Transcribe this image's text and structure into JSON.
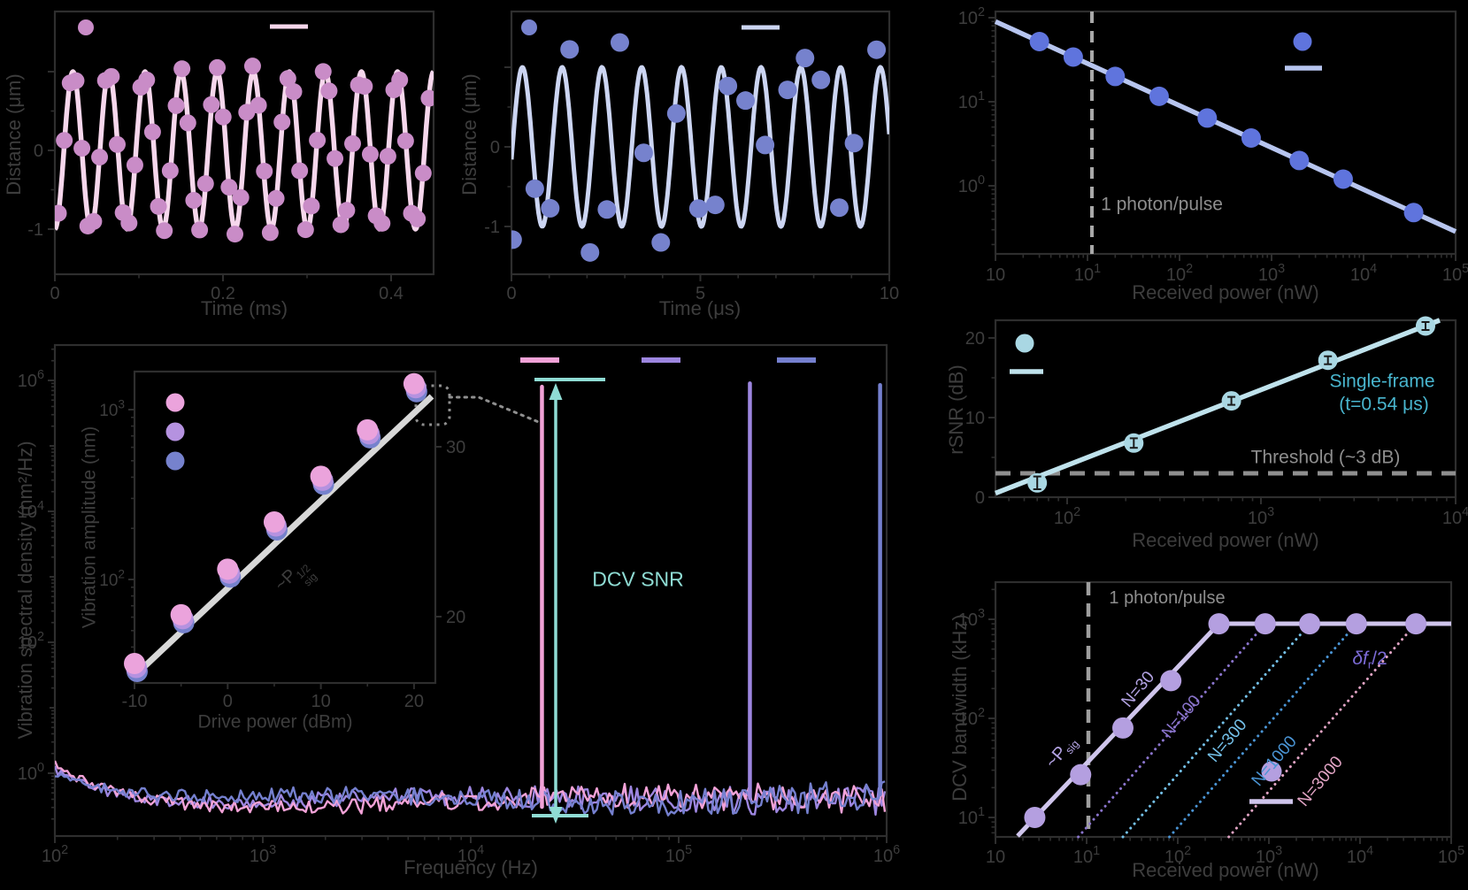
{
  "palette": {
    "background": "#000000",
    "axis": "#2e2e2e",
    "tick_text": "#3d3d3d",
    "pink_dot": "#c98cc7",
    "pink_line": "#f6d7ec",
    "periwinkle_dot": "#7682cd",
    "periwinkle_line": "#ccd5f2",
    "blue_dot": "#5f74dd",
    "blue_line": "#b7c5ef",
    "teal_dot": "#a9d7e3",
    "teal_line": "#bfe2ec",
    "teal_text": "#49b6cf",
    "gray_annotation": "#8e8e8e",
    "gray_dash": "#9e9e9e",
    "spec_pink": "#f2a2d7",
    "spec_violet": "#9d86e0",
    "spec_blue": "#7580cf",
    "dcv_teal": "#8fdcd4",
    "inset_line": "#d8d8d8",
    "inset_pink": "#eba3dc",
    "inset_lavender": "#b592e0",
    "lav_line": "#cfc5ec",
    "lav_dot": "#b49fe0",
    "n30": "#b3a3e3",
    "n100": "#8a74cc",
    "n300": "#74c0e8",
    "n1000": "#4a94d4",
    "n3000": "#e0a3c3",
    "delta_purple": "#7c6bd6"
  },
  "chart_data": {
    "panel_a": {
      "type": "line+scatter",
      "xlabel": "Time (ms)",
      "ylabel": "Distance (μm)",
      "x_tick_labels": [
        "0",
        "0.2",
        "0.4"
      ],
      "y_tick_labels": [
        "0",
        "-1"
      ],
      "xlim_ms": [
        0,
        0.45
      ],
      "ylim_um": [
        -1.6,
        1.75
      ],
      "sine": {
        "amplitude_um": 1,
        "cycles": 10.5,
        "seed": 11
      },
      "scatter": {
        "n_points": 64,
        "jitter_um": 0.13
      }
    },
    "panel_b": {
      "type": "line+scatter",
      "xlabel": "Time (μs)",
      "ylabel": "Distance (μm)",
      "x_tick_labels": [
        "0",
        "5",
        "10"
      ],
      "y_tick_labels": [
        "0",
        "-1"
      ],
      "xlim_us": [
        0,
        10
      ],
      "sine": {
        "amplitude_um": 1,
        "cycles": 9.5,
        "seed": 23
      },
      "scatter": {
        "n_points": 21,
        "spread_um": 1.35
      }
    },
    "panel_c": {
      "type": "scatter+line",
      "xlabel": "Received power (nW)",
      "x_tick_labels": [
        "10",
        "10^1",
        "10^2",
        "10^3",
        "10^4",
        "10^5"
      ],
      "y_tick_labels": [
        "10^0",
        "10^1",
        "10^2"
      ],
      "x_nW": [
        3,
        7,
        20,
        60,
        200,
        600,
        2000,
        6000,
        35000
      ],
      "y": [
        52,
        34,
        20,
        11.6,
        6.4,
        3.7,
        2.0,
        1.2,
        0.48
      ],
      "fit_endpoints": {
        "x": [
          1,
          100000
        ],
        "y": [
          90,
          0.285
        ]
      },
      "vline_label": "1 photon/pulse"
    },
    "panel_d": {
      "type": "scatter+line",
      "xlabel": "Received power (nW)",
      "ylabel": "rSNR (dB)",
      "x_tick_labels": [
        "10^2",
        "10^3",
        "10^4"
      ],
      "y_tick_labels": [
        "0",
        "10",
        "20"
      ],
      "x_nW": [
        70,
        220,
        700,
        2200,
        7000
      ],
      "y_dB": [
        1.8,
        6.8,
        12.1,
        17.2,
        21.5
      ],
      "yerr_dB": [
        0.8,
        0.6,
        0.5,
        0.5,
        0.5
      ],
      "threshold_dB": 3,
      "annotation_line1": "Single-frame",
      "annotation_line2": "(t=0.54 μs)",
      "threshold_label": "Threshold (~3 dB)"
    },
    "panel_e": {
      "type": "line+scatter",
      "xlabel": "Received power (nW)",
      "ylabel": "DCV bandwidth (kHz)",
      "x_tick_labels": [
        "10",
        "10^1",
        "10^2",
        "10^3",
        "10^4",
        "10^5"
      ],
      "y_tick_labels": [
        "10^1",
        "10^2",
        "10^3"
      ],
      "solid_x_nW": [
        2.7,
        8.6,
        25,
        84,
        283,
        910,
        2800,
        9100,
        41000
      ],
      "solid_y_kHz": [
        10,
        27,
        80,
        240,
        900,
        900,
        900,
        900,
        900
      ],
      "saturation_kHz": 900,
      "n_labels": [
        "N=30",
        "N=100",
        "N=300",
        "N=1000",
        "N=3000"
      ],
      "n_curves": [
        {
          "label": "N=100",
          "x_bottom_nW": 8.1,
          "x_join_nW": 915
        },
        {
          "label": "N=300",
          "x_bottom_nW": 25,
          "x_join_nW": 2820
        },
        {
          "label": "N=1000",
          "x_bottom_nW": 81,
          "x_join_nW": 9150
        },
        {
          "label": "N=3000",
          "x_bottom_nW": 363,
          "x_join_nW": 41000
        }
      ],
      "photon_label": "1 photon/pulse",
      "psig": {
        "base": "~P",
        "sub": "sig"
      },
      "delta": {
        "p1": "δf",
        "sub": "r",
        "p2": "/2"
      }
    },
    "panel_f": {
      "type": "spectrum",
      "xlabel": "Frequency (Hz)",
      "ylabel": "Vibration spectral density  (nm²/Hz)",
      "x_tick_labels": [
        "10^2",
        "10^3",
        "10^4",
        "10^5",
        "10^6"
      ],
      "y_tick_labels": [
        "10^6",
        "10^4",
        "10^2",
        "10^0"
      ],
      "peaks": [
        {
          "series": "pink",
          "freq_Hz": 22000,
          "psd": 800000
        },
        {
          "series": "violet",
          "freq_Hz": 220000,
          "psd": 900000
        },
        {
          "series": "blue",
          "freq_Hz": 930000,
          "psd": 850000
        }
      ],
      "noise_floor_range": [
        0.2,
        1.5
      ],
      "dcv_snr_label": "DCV SNR",
      "inset": {
        "xlabel": "Drive power (dBm)",
        "ylabel": "Vibration amplitude (nm)",
        "x_tick_labels": [
          "-10",
          "0",
          "10",
          "20"
        ],
        "y_tick_labels": [
          "10^3",
          "10^2"
        ],
        "right_tick_labels": [
          "30",
          "20"
        ],
        "drive_dBm": [
          -10,
          -5,
          0,
          5,
          10,
          15,
          20
        ],
        "amplitude_nm": [
          32,
          62,
          115,
          218,
          405,
          760,
          1420
        ],
        "fit": {
          "base": "~P",
          "sub": "sig",
          "sup": "1/2"
        }
      }
    }
  }
}
